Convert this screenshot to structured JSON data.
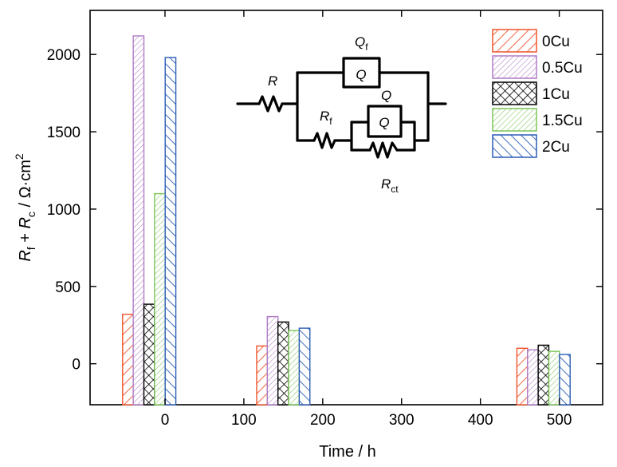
{
  "chart_data": {
    "type": "bar",
    "xlabel": "Time / h",
    "ylabel": {
      "r1": "R",
      "s1": "f",
      "mid": " + ",
      "r2": "R",
      "s2": "c",
      "unit": " / Ω·cm",
      "sup": "2"
    },
    "xlim": [
      -95,
      555
    ],
    "ylim": [
      -265,
      2285
    ],
    "x_ticks": [
      0,
      100,
      200,
      300,
      400,
      500
    ],
    "y_ticks": [
      0,
      500,
      1000,
      1500,
      2000
    ],
    "x_tick_labels": [
      "0",
      "100",
      "200",
      "300",
      "400",
      "500"
    ],
    "y_tick_labels": [
      "0",
      "500",
      "1000",
      "1500",
      "2000"
    ],
    "group_centers": [
      -20,
      150,
      480
    ],
    "bar_width": 13.5,
    "series": [
      {
        "name": "0Cu",
        "color": "#f0542a",
        "pattern": "diag-right-wide",
        "values": [
          320,
          115,
          100
        ]
      },
      {
        "name": "0.5Cu",
        "color": "#b07cc6",
        "pattern": "diag-right-fine",
        "values": [
          2120,
          305,
          90
        ]
      },
      {
        "name": "1Cu",
        "color": "#000000",
        "pattern": "cross",
        "values": [
          385,
          270,
          120
        ]
      },
      {
        "name": "1.5Cu",
        "color": "#7cc65a",
        "pattern": "diag-right-fine",
        "values": [
          1100,
          215,
          80
        ]
      },
      {
        "name": "2Cu",
        "color": "#2a5cb5",
        "pattern": "diag-left-wide",
        "values": [
          1980,
          230,
          60
        ]
      }
    ],
    "legend_position": "top-right",
    "grid": false,
    "inset_circuit": {
      "labels": {
        "R": "R",
        "Rf_main": "R",
        "Rf_sub": "f",
        "Qf_main": "Q",
        "Qf_sub": "f",
        "Q_upper": "Q",
        "Q_box1": "Q",
        "Q_box2": "Q",
        "Rct_main": "R",
        "Rct_sub": "ct"
      }
    }
  }
}
